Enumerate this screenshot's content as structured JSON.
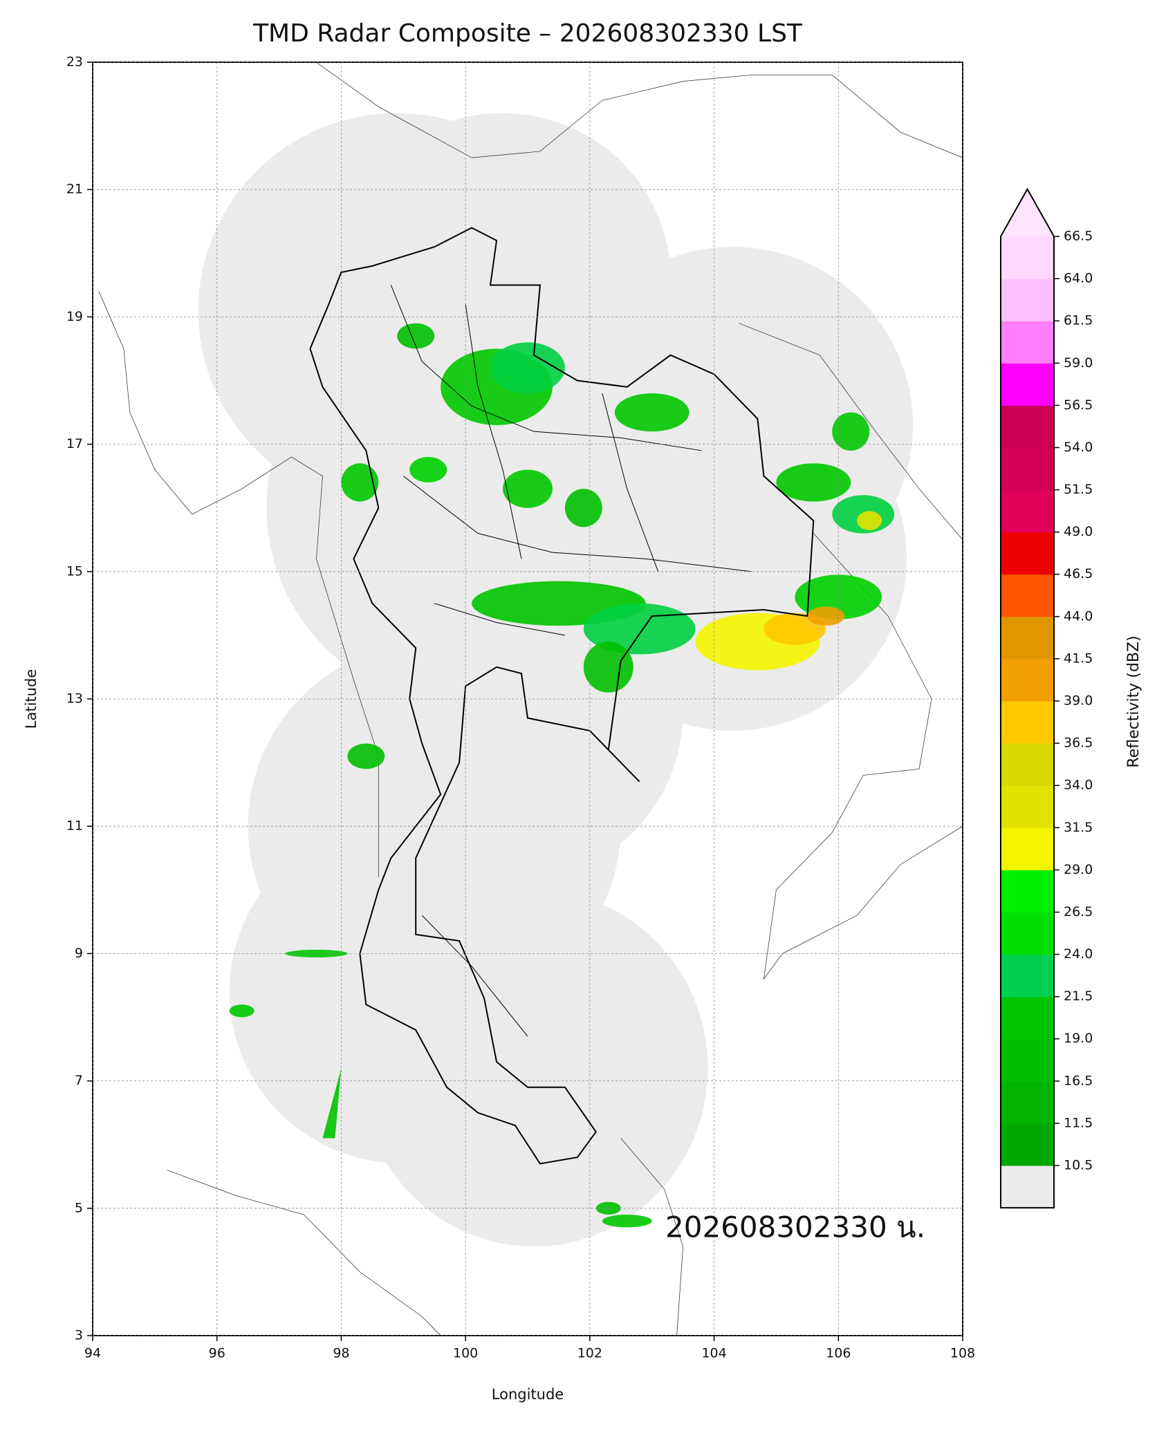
{
  "map": {
    "title": "TMD Radar Composite – 202608302330 LST",
    "x_label": "Longitude",
    "y_label": "Latitude",
    "xlim": [
      94,
      108
    ],
    "ylim": [
      3,
      23
    ],
    "xticks": [
      94,
      96,
      98,
      100,
      102,
      104,
      106,
      108
    ],
    "yticks": [
      3,
      5,
      7,
      9,
      11,
      13,
      15,
      17,
      19,
      21,
      23
    ],
    "grid": true,
    "annotation": "202608302330 น."
  },
  "colorbar": {
    "label": "Reflectivity (dBZ)",
    "levels": [
      10.5,
      11.5,
      16.5,
      {
        "value": 19,
        "label": "19.0"
      },
      21.5,
      {
        "value": 24,
        "label": "24.0"
      },
      26.5,
      {
        "value": 29,
        "label": "29.0"
      },
      31.5,
      {
        "value": 34,
        "label": "34.0"
      },
      36.5,
      {
        "value": 39,
        "label": "39.0"
      },
      41.5,
      {
        "value": 44,
        "label": "44.0"
      },
      46.5,
      {
        "value": 49,
        "label": "49.0"
      },
      51.5,
      {
        "value": 54,
        "label": "54.0"
      },
      56.5,
      {
        "value": 59,
        "label": "59.0"
      },
      61.5,
      {
        "value": 64,
        "label": "64.0"
      },
      66.5
    ],
    "colors": [
      "#00a800",
      "#00b400",
      "#00be00",
      "#00c400",
      "#00d050",
      "#00e000",
      "#00f000",
      "#f5f500",
      "#e2e200",
      "#d8d800",
      "#ffc800",
      "#f0a000",
      "#e09600",
      "#ff5500",
      "#ee0000",
      "#e0005a",
      "#d40055",
      "#cc0055",
      "#ff00ff",
      "#ff80ff",
      "#ffc0ff",
      "#ffd8ff"
    ],
    "under_color": "#ebebeb",
    "over_color": "#ffe4ff"
  }
}
